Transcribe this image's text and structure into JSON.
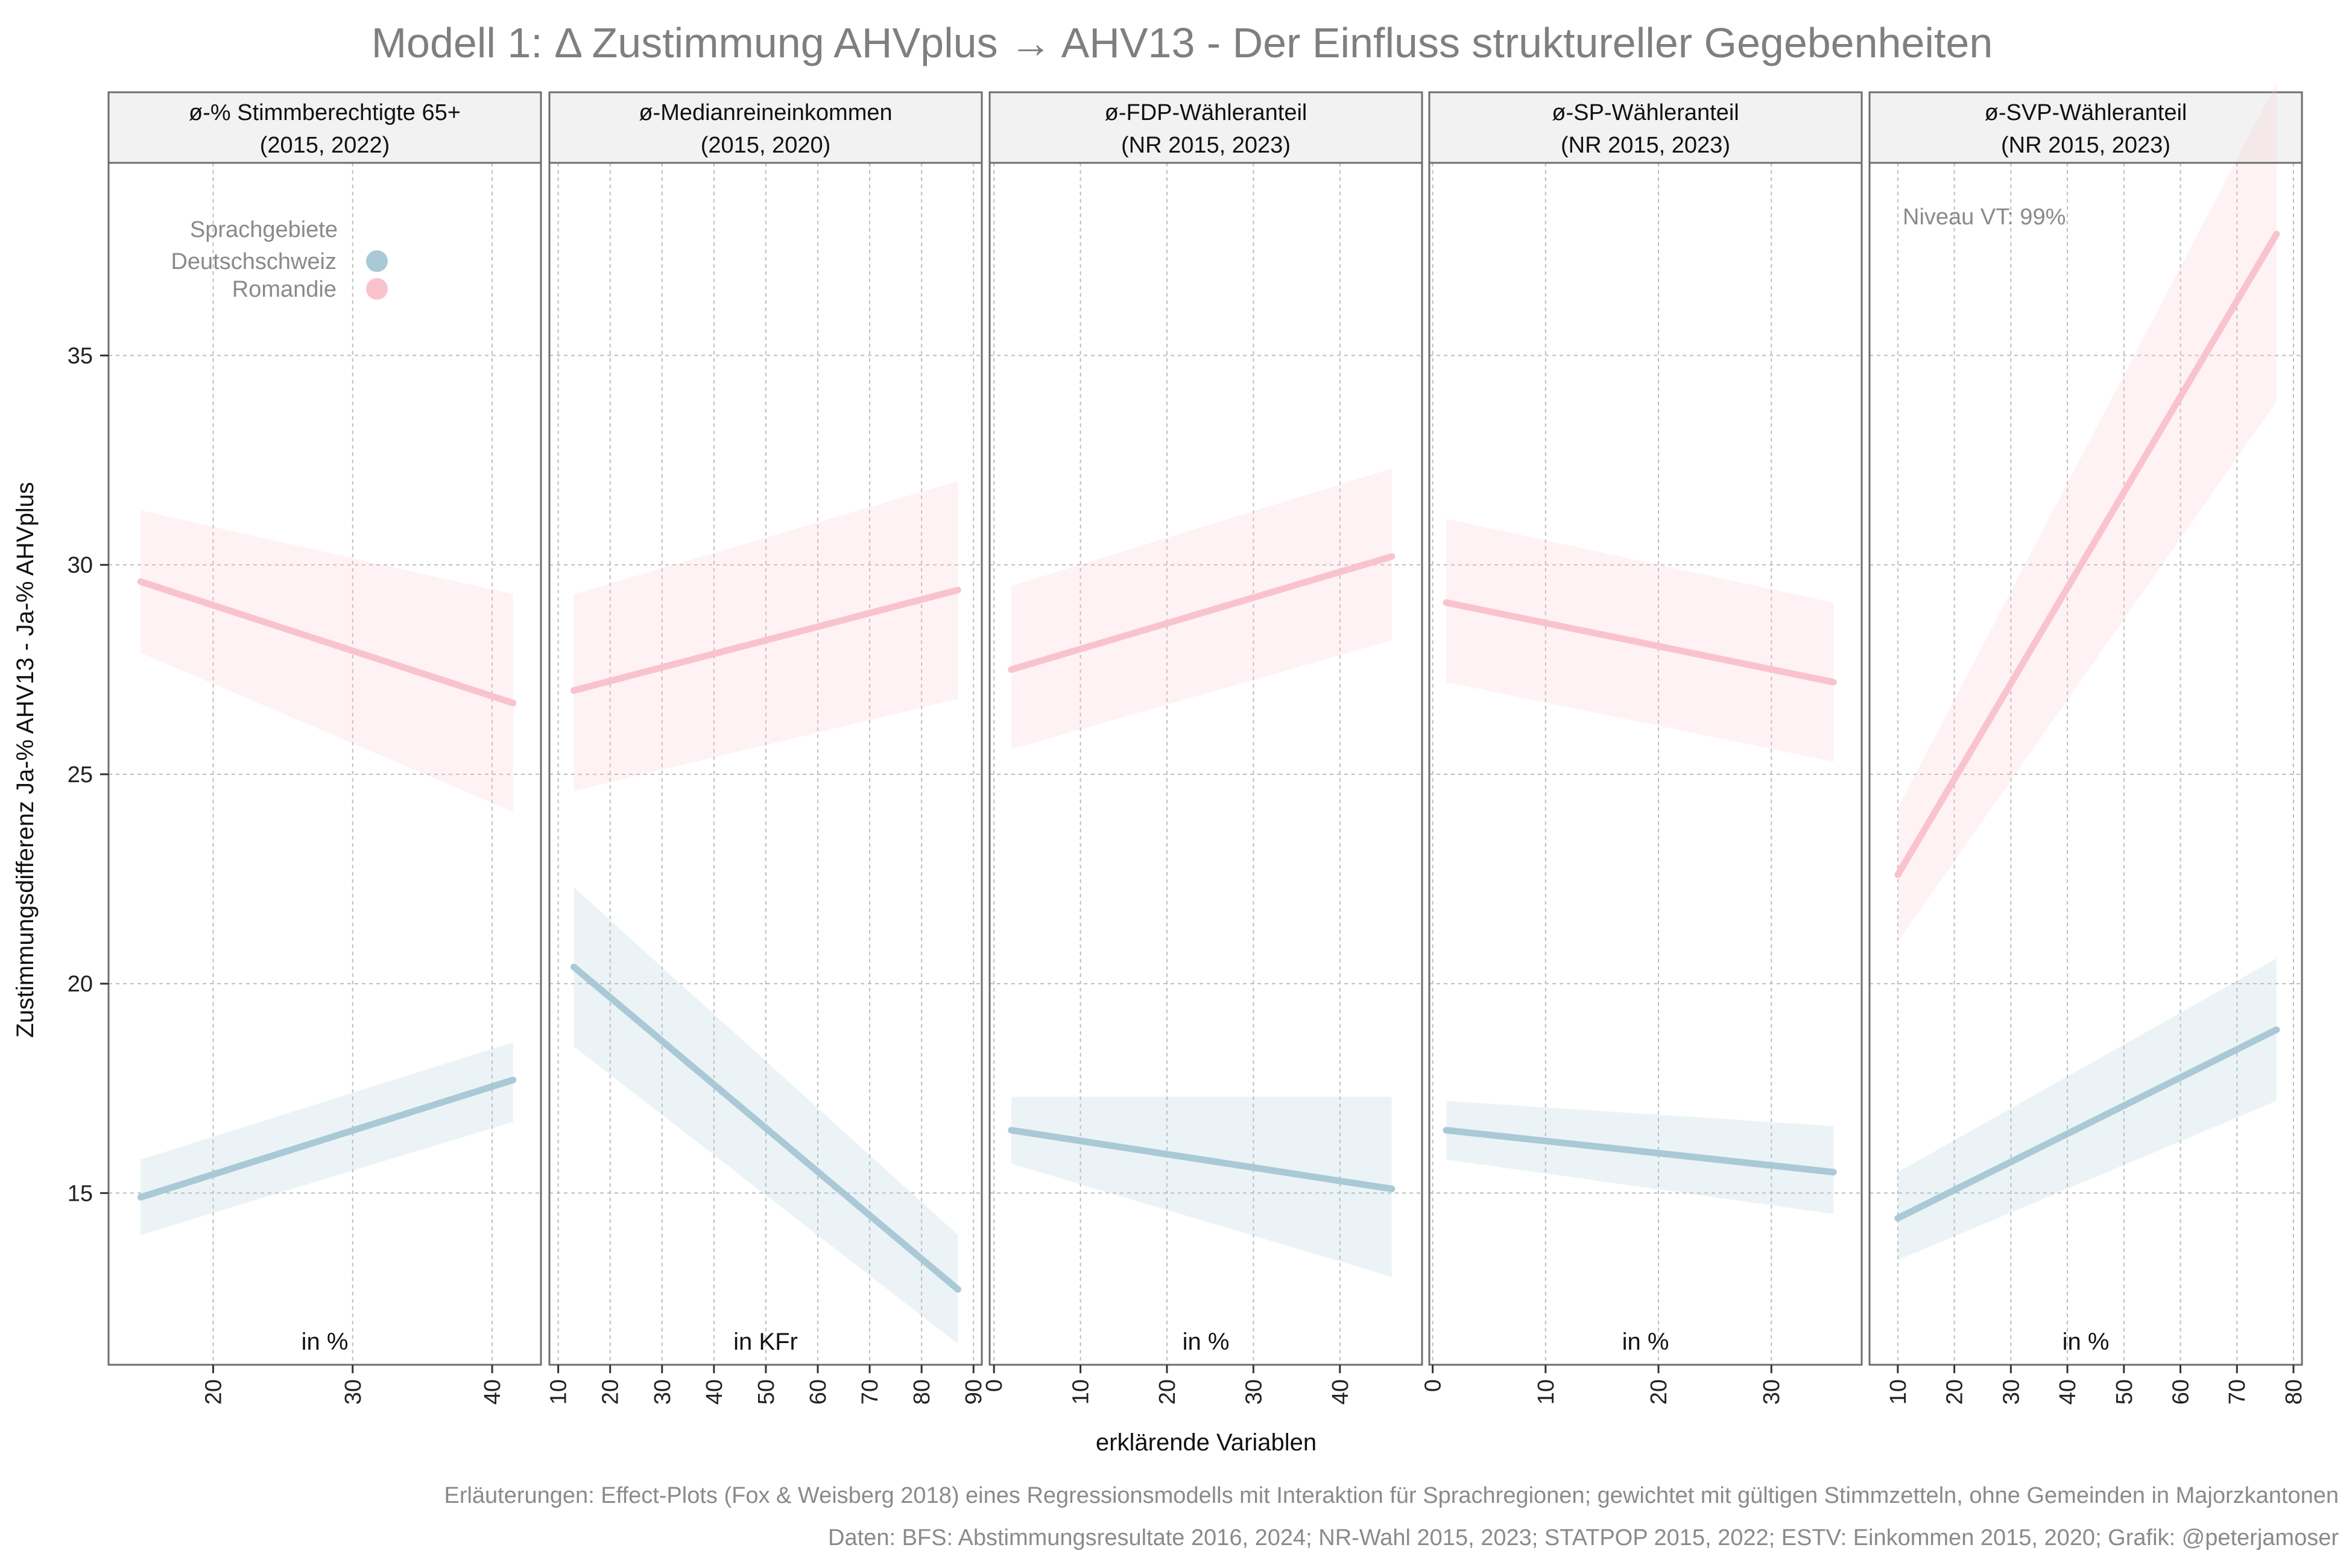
{
  "title": "Modell 1: Δ Zustimmung AHVplus → AHV13 - Der Einfluss struktureller Gegebenheiten",
  "caption_line1": "Erläuterungen: Effect-Plots (Fox & Weisberg 2018) eines Regressionsmodells mit Interaktion für Sprachregionen; gewichtet mit gültigen Stimmzetteln, ohne Gemeinden in Majorzkantonen",
  "caption_line2": "Daten: BFS: Abstimmungsresultate 2016, 2024; NR-Wahl 2015, 2023; STATPOP 2015, 2022; ESTV: Einkommen 2015, 2020; Grafik: @peterjamoser",
  "colors": {
    "Deutschschweiz": "#a9c9d6",
    "Romandie": "#f9c3cd",
    "strip_bg": "#f2f2f2",
    "grid": "#bdbdbd"
  },
  "chart_data": {
    "type": "line",
    "xlabel": "erklärende Variablen",
    "ylabel": "Zustimmungsdifferenz Ja-% AHV13 - Ja-% AHVplus",
    "ylim": [
      10.9,
      39.6
    ],
    "yticks": [
      15,
      20,
      25,
      30,
      35
    ],
    "grid": true,
    "legend": {
      "title": "Sprachgebiete",
      "position": "top-left of first panel",
      "entries": [
        "Deutschschweiz",
        "Romandie"
      ]
    },
    "annotation": {
      "text": "Niveau VT: 99%",
      "panel": 5
    },
    "panels": [
      {
        "strip": [
          "ø-% Stimmberechtigte 65+",
          "(2015, 2022)"
        ],
        "unit": "in %",
        "xlim": [
          12.5,
          43.5
        ],
        "xticks": [
          20,
          30,
          40
        ],
        "series": [
          {
            "name": "Deutschschweiz",
            "x": [
              14.8,
              41.5
            ],
            "y": [
              14.9,
              17.7
            ],
            "lower": [
              14.0,
              16.7
            ],
            "upper": [
              15.8,
              18.6
            ]
          },
          {
            "name": "Romandie",
            "x": [
              14.8,
              41.5
            ],
            "y": [
              29.6,
              26.7
            ],
            "lower": [
              27.9,
              24.1
            ],
            "upper": [
              31.3,
              29.3
            ]
          }
        ]
      },
      {
        "strip": [
          "ø-Medianreineinkommen",
          "(2015, 2020)"
        ],
        "unit": "in KFr",
        "xlim": [
          8.3,
          91.6
        ],
        "xticks": [
          10,
          20,
          30,
          40,
          50,
          60,
          70,
          80,
          90
        ],
        "series": [
          {
            "name": "Deutschschweiz",
            "x": [
              13,
              87
            ],
            "y": [
              20.4,
              12.7
            ],
            "lower": [
              18.5,
              11.4
            ],
            "upper": [
              22.3,
              14.0
            ]
          },
          {
            "name": "Romandie",
            "x": [
              13,
              87
            ],
            "y": [
              27.0,
              29.4
            ],
            "lower": [
              24.6,
              26.8
            ],
            "upper": [
              29.3,
              32.0
            ]
          }
        ]
      },
      {
        "strip": [
          "ø-FDP-Wähleranteil",
          "(NR 2015, 2023)"
        ],
        "unit": "in %",
        "xlim": [
          -0.5,
          49.5
        ],
        "xticks": [
          0,
          10,
          20,
          30,
          40
        ],
        "series": [
          {
            "name": "Deutschschweiz",
            "x": [
              2,
              46
            ],
            "y": [
              16.5,
              15.1
            ],
            "lower": [
              15.7,
              13.0
            ],
            "upper": [
              17.3,
              17.3
            ]
          },
          {
            "name": "Romandie",
            "x": [
              2,
              46
            ],
            "y": [
              27.5,
              30.2
            ],
            "lower": [
              25.6,
              28.2
            ],
            "upper": [
              29.5,
              32.3
            ]
          }
        ]
      },
      {
        "strip": [
          "ø-SP-Wähleranteil",
          "(NR 2015, 2023)"
        ],
        "unit": "in %",
        "xlim": [
          -0.3,
          38.0
        ],
        "xticks": [
          0,
          10,
          20,
          30
        ],
        "series": [
          {
            "name": "Deutschschweiz",
            "x": [
              1.2,
              35.5
            ],
            "y": [
              16.5,
              15.5
            ],
            "lower": [
              15.8,
              14.5
            ],
            "upper": [
              17.2,
              16.6
            ]
          },
          {
            "name": "Romandie",
            "x": [
              1.2,
              35.5
            ],
            "y": [
              29.1,
              27.2
            ],
            "lower": [
              27.2,
              25.3
            ],
            "upper": [
              31.1,
              29.1
            ]
          }
        ]
      },
      {
        "strip": [
          "ø-SVP-Wähleranteil",
          "(NR 2015, 2023)"
        ],
        "unit": "in %",
        "xlim": [
          5.0,
          81.5
        ],
        "xticks": [
          10,
          20,
          30,
          40,
          50,
          60,
          70,
          80
        ],
        "series": [
          {
            "name": "Deutschschweiz",
            "x": [
              10,
              77
            ],
            "y": [
              14.4,
              18.9
            ],
            "lower": [
              13.4,
              17.2
            ],
            "upper": [
              15.5,
              20.6
            ]
          },
          {
            "name": "Romandie",
            "x": [
              10,
              77
            ],
            "y": [
              22.6,
              37.9
            ],
            "lower": [
              21.0,
              33.9
            ],
            "upper": [
              24.2,
              41.5
            ]
          }
        ]
      }
    ]
  }
}
